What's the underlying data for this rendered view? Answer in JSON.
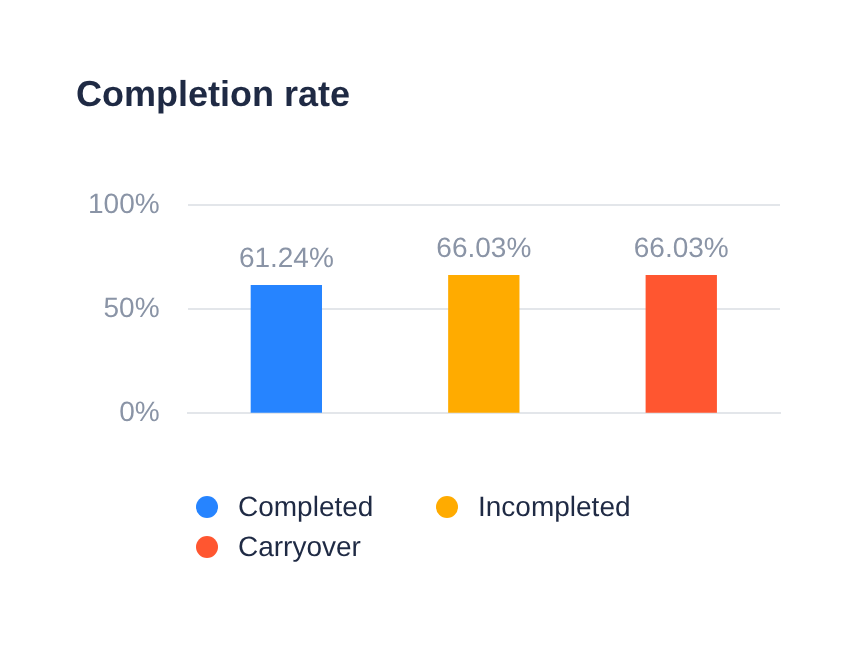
{
  "chart_data": {
    "type": "bar",
    "title": "Completion rate",
    "categories": [
      null,
      null,
      null
    ],
    "series": [
      {
        "name": "Completed",
        "color": "#2684ff",
        "values": [
          61.24,
          null,
          null
        ],
        "value_labels": [
          "61.24%",
          null,
          null
        ]
      },
      {
        "name": "Incompleted",
        "color": "#ffab00",
        "values": [
          null,
          66.03,
          null
        ],
        "value_labels": [
          null,
          "66.03%",
          null
        ]
      },
      {
        "name": "Carryover",
        "color": "#ff5630",
        "values": [
          null,
          null,
          66.03
        ],
        "value_labels": [
          null,
          null,
          "66.03%"
        ]
      }
    ],
    "ylim": [
      0,
      100
    ],
    "yticks": [
      {
        "value": 0,
        "label": "0%"
      },
      {
        "value": 50,
        "label": "50%"
      },
      {
        "value": 100,
        "label": "100%"
      }
    ],
    "grid": "y",
    "legend": "bottom"
  }
}
